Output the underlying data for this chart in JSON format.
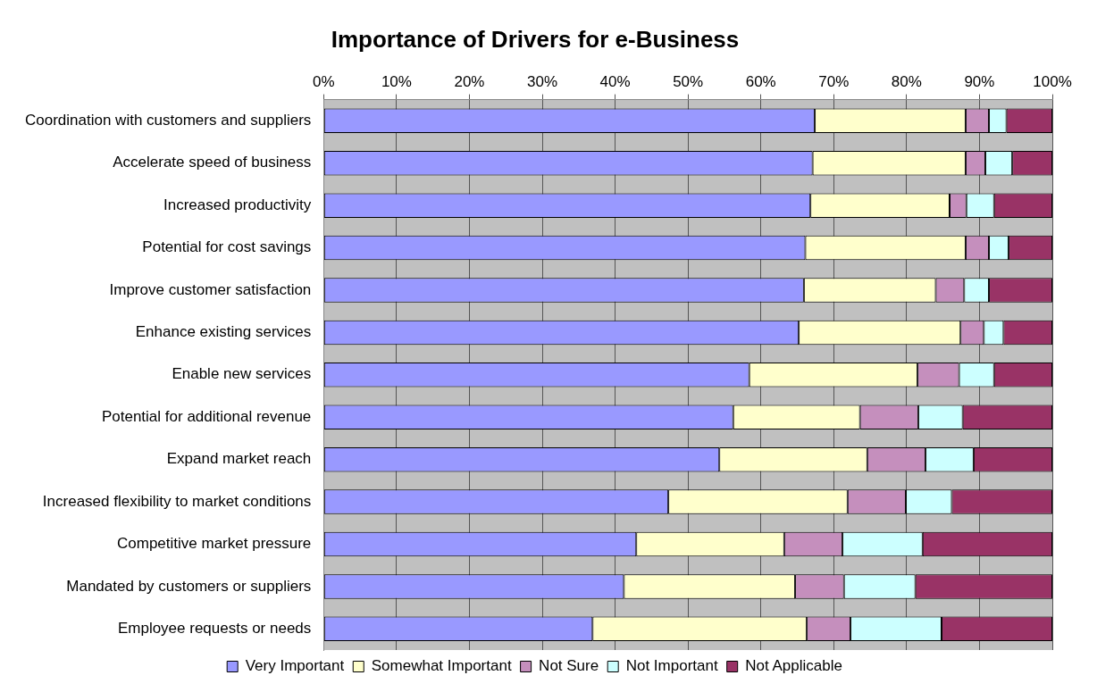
{
  "chart_data": {
    "type": "bar",
    "title": "Importance of Drivers for e-Business",
    "orientation": "horizontal",
    "stacked": true,
    "categories": [
      "Coordination with customers and suppliers",
      "Accelerate speed of business",
      "Increased productivity",
      "Potential for cost savings",
      "Improve customer satisfaction",
      "Enhance existing services",
      "Enable new services",
      "Potential for additional revenue",
      "Expand market reach",
      "Increased flexibility to market conditions",
      "Competitive market pressure",
      "Mandated by customers or suppliers",
      "Employee requests or needs"
    ],
    "series": [
      {
        "name": "Very Important",
        "color": "#9999ff",
        "values": [
          67.4,
          67.1,
          66.8,
          66.1,
          65.9,
          65.2,
          58.4,
          56.2,
          54.3,
          47.3,
          42.9,
          41.2,
          36.9
        ]
      },
      {
        "name": "Somewhat Important",
        "color": "#ffffcc",
        "values": [
          20.7,
          21.0,
          19.1,
          22.0,
          18.1,
          22.2,
          23.1,
          17.4,
          20.3,
          24.6,
          20.3,
          23.5,
          29.4
        ]
      },
      {
        "name": "Not Sure",
        "color": "#c58fbd",
        "values": [
          3.2,
          2.7,
          2.3,
          3.2,
          3.9,
          3.2,
          5.7,
          8.0,
          8.0,
          8.0,
          8.0,
          6.7,
          6.0
        ]
      },
      {
        "name": "Not Important",
        "color": "#ccffff",
        "values": [
          2.4,
          3.7,
          3.8,
          2.7,
          3.4,
          2.7,
          4.8,
          6.1,
          6.6,
          6.3,
          11.0,
          9.8,
          12.5
        ]
      },
      {
        "name": "Not Applicable",
        "color": "#993366",
        "values": [
          6.3,
          5.5,
          8.0,
          6.0,
          8.7,
          6.7,
          8.0,
          12.3,
          10.8,
          13.8,
          17.8,
          18.8,
          15.2
        ]
      }
    ],
    "xlim": [
      0,
      100
    ],
    "xticks": [
      {
        "value": 0,
        "label": "0%"
      },
      {
        "value": 10,
        "label": "10%"
      },
      {
        "value": 20,
        "label": "20%"
      },
      {
        "value": 30,
        "label": "30%"
      },
      {
        "value": 40,
        "label": "40%"
      },
      {
        "value": 50,
        "label": "50%"
      },
      {
        "value": 60,
        "label": "60%"
      },
      {
        "value": 70,
        "label": "70%"
      },
      {
        "value": 80,
        "label": "80%"
      },
      {
        "value": 90,
        "label": "90%"
      },
      {
        "value": 100,
        "label": "100%"
      }
    ],
    "grid": "x",
    "legend": "bottom"
  }
}
